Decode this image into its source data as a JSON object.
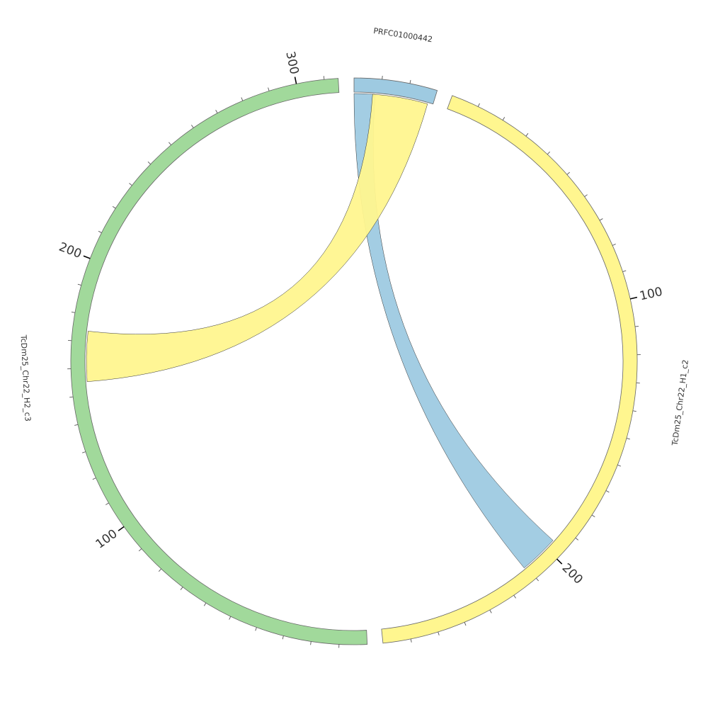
{
  "diagram": {
    "type": "chord",
    "tick_interval": 10,
    "major_tick_interval": 100,
    "segments": [
      {
        "name": "PRFC01000442",
        "length": 30,
        "color": "#9ecae1"
      },
      {
        "name": "TcDm25_Chr22_H1_c2",
        "length": 270,
        "color": "#fff68f"
      },
      {
        "name": "TcDm25_Chr22_H2_c3",
        "length": 315,
        "color": "#a1d99b"
      }
    ],
    "links": [
      {
        "from": {
          "segment": "PRFC01000442",
          "start": 0,
          "end": 8
        },
        "to": {
          "segment": "TcDm25_Chr22_H1_c2",
          "start": 196,
          "end": 211
        },
        "color": "#9ecae1"
      },
      {
        "from": {
          "segment": "PRFC01000442",
          "start": 7,
          "end": 28
        },
        "to": {
          "segment": "TcDm25_Chr22_H2_c3",
          "start": 155,
          "end": 174
        },
        "color": "#fff68f"
      }
    ]
  }
}
